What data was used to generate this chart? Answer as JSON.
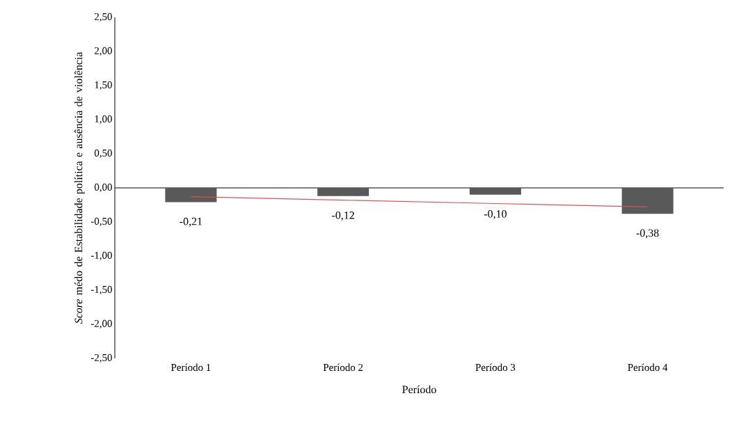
{
  "chart_data": {
    "type": "bar",
    "xlabel": "Período",
    "ylabel": "*Score* médo de Estabilidade política e ausência de violência",
    "categories": [
      "Período 1",
      "Período 2",
      "Período 3",
      "Período 4"
    ],
    "series": [
      {
        "color": "#595959",
        "values": [
          -0.21,
          -0.12,
          -0.1,
          -0.38
        ],
        "value_labels": [
          "-0,21",
          "-0,12",
          "-0,10",
          "-0,38"
        ]
      },
      {
        "type": "line",
        "color": "#d9534f",
        "values": [
          -0.13,
          -0.18,
          -0.23,
          -0.28
        ]
      }
    ],
    "ylim": [
      -2.5,
      2.5
    ],
    "yticks": [
      {
        "value": -2.5,
        "label": "-2,50"
      },
      {
        "value": -2.0,
        "label": "-2,00"
      },
      {
        "value": -1.5,
        "label": "-1,50"
      },
      {
        "value": -1.0,
        "label": "-1,00"
      },
      {
        "value": -0.5,
        "label": "-0,50"
      },
      {
        "value": 0.0,
        "label": "0,00"
      },
      {
        "value": 0.5,
        "label": "0,50"
      },
      {
        "value": 1.0,
        "label": "1,00"
      },
      {
        "value": 1.5,
        "label": "1,50"
      },
      {
        "value": 2.0,
        "label": "2,00"
      },
      {
        "value": 2.5,
        "label": "2,50"
      }
    ]
  }
}
